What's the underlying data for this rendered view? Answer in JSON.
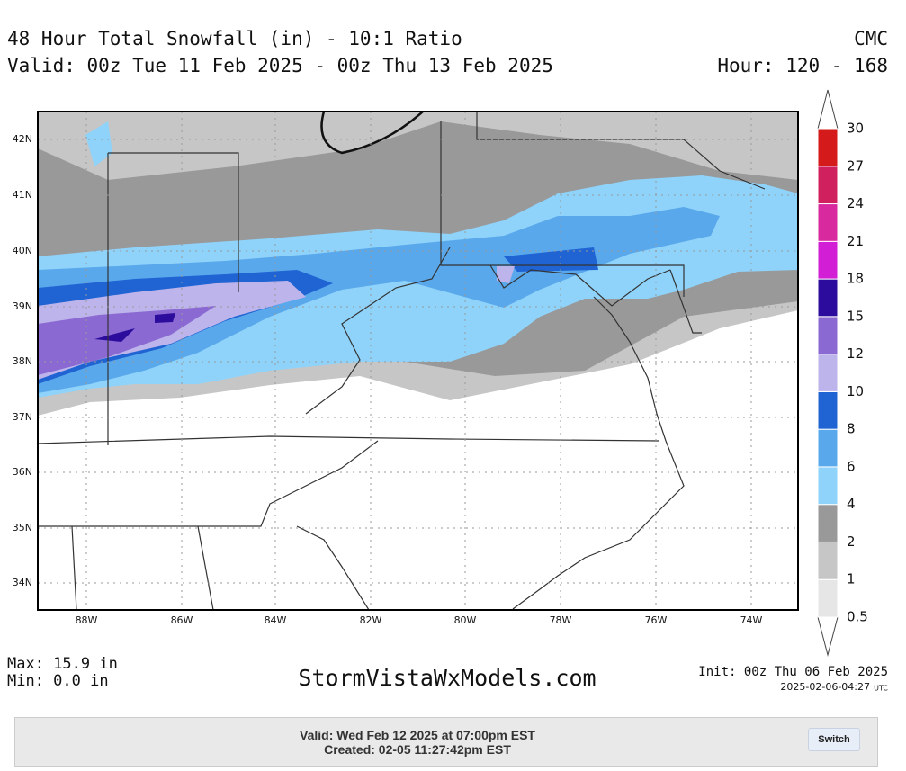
{
  "header": {
    "title": "48 Hour Total Snowfall (in) - 10:1 Ratio",
    "valid": "Valid: 00z Tue 11 Feb 2025 - 00z Thu 13 Feb 2025",
    "model": "CMC",
    "hours": "Hour: 120 - 168"
  },
  "map": {
    "lat_labels": [
      "42N",
      "41N",
      "40N",
      "39N",
      "38N",
      "37N",
      "36N",
      "35N",
      "34N"
    ],
    "lon_labels": [
      "88W",
      "86W",
      "84W",
      "82W",
      "80W",
      "78W",
      "76W",
      "74W"
    ]
  },
  "colorbar": {
    "levels": [
      "0.5",
      "1",
      "2",
      "4",
      "6",
      "8",
      "10",
      "12",
      "15",
      "18",
      "21",
      "24",
      "27",
      "30"
    ],
    "colors": [
      "#e6e6e6",
      "#c6c6c6",
      "#999999",
      "#8fd3fa",
      "#5aa8ec",
      "#1f64d2",
      "#beb4ec",
      "#8a6ad2",
      "#2c0c9c",
      "#d21ed4",
      "#d82a9e",
      "#d0205e",
      "#d41a1a"
    ]
  },
  "footer": {
    "max": "Max: 15.9 in",
    "min": "Min: 0.0 in",
    "site": "StormVistaWxModels.com",
    "init": "Init: 00z Thu 06 Feb 2025",
    "timestamp": "2025-02-06-04:27",
    "utc": "UTC"
  },
  "panel": {
    "valid": "Valid: Wed Feb 12 2025 at 07:00pm EST",
    "created": "Created: 02-05 11:27:42pm EST",
    "button": "Switch"
  }
}
